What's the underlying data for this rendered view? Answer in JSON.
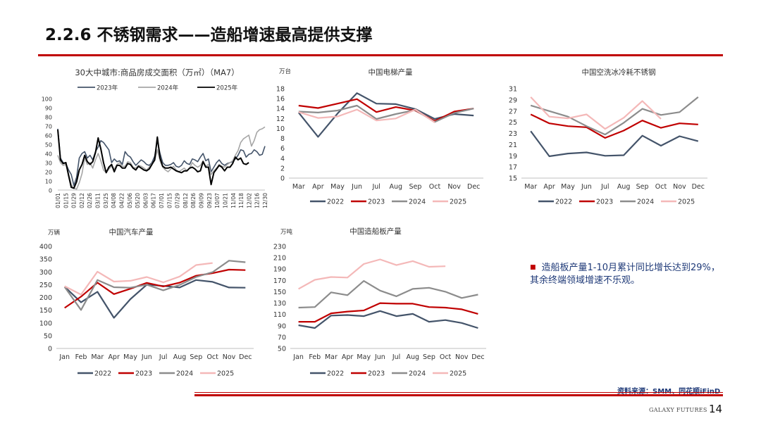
{
  "slide": {
    "title": "2.2.6 不锈钢需求——造船增速最高提供支撑",
    "note": "造船板产量1-10月累计同比增长达到29%，其余终端领域增速不乐观。",
    "source": "资料来源：SMM、同花顺iFinD",
    "brand": "GALAXY FUTURES",
    "page_number": "14",
    "colors": {
      "accent": "#c00000",
      "note_text": "#1f3a78"
    }
  },
  "chart_data": [
    {
      "id": "housing",
      "type": "line",
      "title": "30大中城市:商品房成交面积（万㎡）（MA7）",
      "ylabel": "",
      "ylim": [
        0,
        100
      ],
      "yticks": [
        0,
        10,
        20,
        30,
        40,
        50,
        60,
        70,
        80,
        90,
        100
      ],
      "x_tick_labels": [
        "01/01",
        "01/15",
        "01/29",
        "02/12",
        "02/26",
        "03/11",
        "03/25",
        "04/08",
        "04/22",
        "05/06",
        "05/20",
        "06/03",
        "06/17",
        "07/01",
        "07/15",
        "07/29",
        "08/12",
        "08/26",
        "09/09",
        "09/23",
        "10/07",
        "10/21",
        "11/04",
        "11/18",
        "12/02",
        "12/16",
        "12/30"
      ],
      "series": [
        {
          "name": "2023年",
          "color": "#44546a",
          "width": 1.6,
          "values": [
            67,
            35,
            30,
            29,
            22,
            17,
            5,
            14,
            35,
            40,
            42,
            35,
            38,
            33,
            42,
            47,
            54,
            52,
            48,
            44,
            30,
            34,
            31,
            32,
            28,
            42,
            38,
            36,
            31,
            27,
            30,
            33,
            31,
            28,
            27,
            30,
            37,
            54,
            40,
            30,
            27,
            27,
            28,
            30,
            26,
            25,
            27,
            32,
            29,
            28,
            34,
            33,
            31,
            36,
            40,
            32,
            34,
            20,
            25,
            30,
            33,
            29,
            27,
            29,
            30,
            31,
            34,
            38,
            44,
            43,
            36,
            39,
            40,
            44,
            42,
            38,
            39,
            48
          ]
        },
        {
          "name": "2024年",
          "color": "#a6a6a6",
          "width": 1.6,
          "values": [
            38,
            30,
            27,
            28,
            18,
            6,
            2,
            1,
            8,
            18,
            35,
            28,
            30,
            24,
            33,
            40,
            32,
            22,
            19,
            23,
            26,
            23,
            28,
            30,
            26,
            26,
            31,
            30,
            25,
            24,
            27,
            26,
            24,
            22,
            25,
            29,
            32,
            44,
            32,
            25,
            22,
            20,
            23,
            26,
            22,
            20,
            22,
            24,
            21,
            24,
            30,
            27,
            25,
            27,
            32,
            26,
            28,
            17,
            21,
            24,
            28,
            26,
            25,
            28,
            30,
            32,
            38,
            43,
            52,
            56,
            58,
            60,
            48,
            54,
            63,
            66,
            67,
            69
          ]
        },
        {
          "name": "2025年",
          "color": "#000000",
          "width": 2.0,
          "values": [
            66,
            33,
            29,
            30,
            16,
            3,
            2,
            9,
            22,
            28,
            38,
            31,
            28,
            31,
            41,
            57,
            45,
            30,
            19,
            25,
            28,
            20,
            27,
            27,
            24,
            24,
            29,
            28,
            24,
            22,
            26,
            24,
            22,
            21,
            23,
            28,
            33,
            58,
            35,
            26,
            24,
            24,
            25,
            23,
            21,
            20,
            19,
            21,
            21,
            24,
            25,
            23,
            20,
            21,
            31,
            25,
            25,
            6,
            19,
            23,
            27,
            25,
            21,
            25,
            25,
            29,
            36,
            33,
            35,
            29,
            28,
            30
          ]
        }
      ]
    },
    {
      "id": "elevator",
      "type": "line",
      "title": "中国电梯产量",
      "ylabel": "万台",
      "ylim": [
        0,
        18
      ],
      "yticks": [
        0,
        2,
        4,
        6,
        8,
        10,
        12,
        14,
        16,
        18
      ],
      "categories": [
        "Mar",
        "Apr",
        "May",
        "Jun",
        "Jul",
        "Aug",
        "Sep",
        "Oct",
        "Nov",
        "Dec"
      ],
      "series": [
        {
          "name": "2022",
          "color": "#44546a",
          "values": [
            13.2,
            8.3,
            13.0,
            17.1,
            15.0,
            14.9,
            13.9,
            11.9,
            12.9,
            12.6
          ]
        },
        {
          "name": "2023",
          "color": "#c00000",
          "values": [
            14.6,
            14.1,
            15.0,
            15.9,
            13.3,
            14.3,
            13.6,
            11.5,
            13.4,
            14.0
          ]
        },
        {
          "name": "2024",
          "color": "#8c8c8c",
          "values": [
            13.4,
            13.2,
            13.6,
            14.6,
            11.9,
            12.9,
            13.7,
            11.3,
            13.1,
            14.0
          ]
        },
        {
          "name": "2025",
          "color": "#f4b8b8",
          "values": [
            13.3,
            12.1,
            12.4,
            13.8,
            11.6,
            12.0,
            13.8,
            11.2,
            null,
            null
          ]
        }
      ]
    },
    {
      "id": "appliance",
      "type": "line",
      "title": "中国空洗冰冷耗不锈钢",
      "ylabel": "",
      "ylim": [
        15,
        31
      ],
      "yticks": [
        15,
        17,
        19,
        21,
        23,
        25,
        27,
        29,
        31
      ],
      "categories": [
        "Mar",
        "Apr",
        "May",
        "Jun",
        "Jul",
        "Aug",
        "Sep",
        "Oct",
        "Nov",
        "Dec"
      ],
      "series": [
        {
          "name": "2022",
          "color": "#44546a",
          "values": [
            23.4,
            18.9,
            19.4,
            19.6,
            19.0,
            19.1,
            22.6,
            20.8,
            22.5,
            21.6
          ]
        },
        {
          "name": "2023",
          "color": "#c00000",
          "values": [
            26.4,
            24.8,
            24.3,
            24.1,
            22.2,
            23.5,
            25.3,
            24.0,
            24.8,
            24.6
          ]
        },
        {
          "name": "2024",
          "color": "#8c8c8c",
          "values": [
            28.0,
            27.0,
            26.0,
            24.3,
            22.8,
            24.9,
            27.4,
            26.3,
            26.8,
            29.5
          ]
        },
        {
          "name": "2025",
          "color": "#f4b8b8",
          "values": [
            29.5,
            26.0,
            25.7,
            26.4,
            23.8,
            25.8,
            28.8,
            25.6,
            null,
            null
          ]
        }
      ]
    },
    {
      "id": "auto",
      "type": "line",
      "title": "中国汽车产量",
      "ylabel": "万辆",
      "ylim": [
        0,
        400
      ],
      "yticks": [
        0,
        50,
        100,
        150,
        200,
        250,
        300,
        350,
        400
      ],
      "categories": [
        "Jan",
        "Feb",
        "Mar",
        "Apr",
        "May",
        "Jun",
        "Jul",
        "Aug",
        "Sep",
        "Oct",
        "Nov",
        "Dec"
      ],
      "series": [
        {
          "name": "2022",
          "color": "#44546a",
          "values": [
            242,
            181,
            222,
            120,
            193,
            250,
            245,
            239,
            268,
            261,
            239,
            238
          ]
        },
        {
          "name": "2023",
          "color": "#c00000",
          "values": [
            159,
            203,
            258,
            213,
            234,
            257,
            243,
            258,
            285,
            295,
            309,
            307
          ]
        },
        {
          "name": "2024",
          "color": "#8c8c8c",
          "values": [
            241,
            151,
            268,
            240,
            238,
            250,
            228,
            249,
            280,
            299,
            344,
            338
          ]
        },
        {
          "name": "2025",
          "color": "#f4b8b8",
          "values": [
            244,
            211,
            301,
            262,
            265,
            280,
            259,
            282,
            327,
            335,
            null,
            null
          ]
        }
      ]
    },
    {
      "id": "shipplate",
      "type": "line",
      "title": "中国造船板产量",
      "ylabel": "万吨",
      "ylim": [
        50,
        230
      ],
      "yticks": [
        50,
        70,
        90,
        110,
        130,
        150,
        170,
        190,
        210,
        230
      ],
      "categories": [
        "Jan",
        "Feb",
        "Mar",
        "Apr",
        "May",
        "Jun",
        "Jul",
        "Aug",
        "Sep",
        "Oct",
        "Nov",
        "Dec"
      ],
      "series": [
        {
          "name": "2022",
          "color": "#44546a",
          "values": [
            91,
            86,
            108,
            109,
            107,
            116,
            107,
            111,
            97,
            100,
            95,
            86
          ]
        },
        {
          "name": "2023",
          "color": "#c00000",
          "values": [
            97,
            97,
            112,
            115,
            117,
            130,
            129,
            129,
            123,
            122,
            119,
            111
          ]
        },
        {
          "name": "2024",
          "color": "#8c8c8c",
          "values": [
            122,
            123,
            149,
            144,
            169,
            152,
            142,
            155,
            157,
            150,
            139,
            145
          ]
        },
        {
          "name": "2025",
          "color": "#f4b8b8",
          "values": [
            155,
            171,
            176,
            175,
            199,
            207,
            197,
            204,
            194,
            195,
            null,
            null
          ]
        }
      ]
    }
  ]
}
